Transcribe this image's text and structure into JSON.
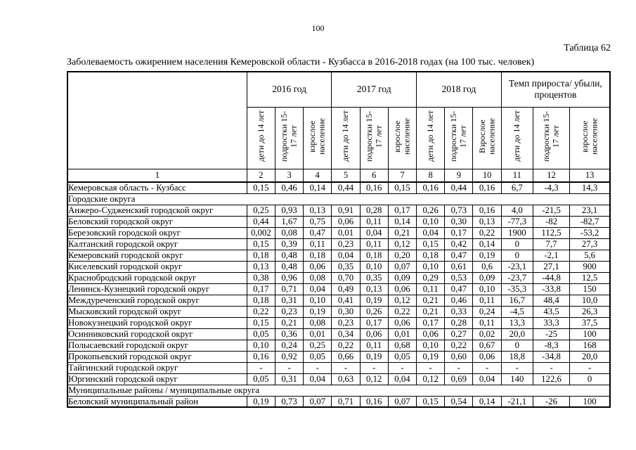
{
  "page": {
    "number": "100",
    "table_label": "Таблица 62",
    "title": "Заболеваемость ожирением населения Кемеровской области - Кузбасса в 2016-2018 годах (на 100 тыс. человек)"
  },
  "table": {
    "group_headers": [
      "2016 год",
      "2017 год",
      "2018 год",
      "Темп прироста/ убыли, процентов"
    ],
    "sub_headers": [
      "дети до 14 лет",
      "подростки 15-17 лет",
      "взрослое население",
      "дети до 14 лет",
      "подростки 15-17 лет",
      "взрослое население",
      "дети до 14 лет",
      "подростки 15-17 лет",
      "Взрослое население",
      "дети до 14 лет",
      "подростки 15-17 лет",
      "взрослое население"
    ],
    "column_numbers": [
      "1",
      "2",
      "3",
      "4",
      "5",
      "6",
      "7",
      "8",
      "9",
      "10",
      "11",
      "12",
      "13"
    ],
    "rows": [
      {
        "section": false,
        "label": "Кемеровская область - Кузбасс",
        "values": [
          "0,15",
          "0,46",
          "0,14",
          "0,44",
          "0,16",
          "0,15",
          "0,16",
          "0,44",
          "0,16",
          "6,7",
          "-4,3",
          "14,3"
        ]
      },
      {
        "section": true,
        "label": "Городские округа",
        "values": []
      },
      {
        "section": false,
        "label": "Анжеро-Судженский городской округ",
        "values": [
          "0,25",
          "0,93",
          "0,13",
          "0,91",
          "0,28",
          "0,17",
          "0,26",
          "0,73",
          "0,16",
          "4,0",
          "-21,5",
          "23,1"
        ]
      },
      {
        "section": false,
        "label": "Беловский городской округ",
        "values": [
          "0,44",
          "1,67",
          "0,75",
          "0,06",
          "0,11",
          "0,14",
          "0,10",
          "0,30",
          "0,13",
          "-77,3",
          "-82",
          "-82,7"
        ]
      },
      {
        "section": false,
        "label": "Березовский городской округ",
        "values": [
          "0,002",
          "0,08",
          "0,47",
          "0,01",
          "0,04",
          "0,21",
          "0,04",
          "0,17",
          "0,22",
          "1900",
          "112,5",
          "-53,2"
        ]
      },
      {
        "section": false,
        "label": "Калтанский городской округ",
        "values": [
          "0,15",
          "0,39",
          "0,11",
          "0,23",
          "0,11",
          "0,12",
          "0,15",
          "0,42",
          "0,14",
          "0",
          "7,7",
          "27,3"
        ]
      },
      {
        "section": false,
        "label": "Кемеровский городской округ",
        "values": [
          "0,18",
          "0,48",
          "0,18",
          "0,04",
          "0,18",
          "0,20",
          "0,18",
          "0,47",
          "0,19",
          "0",
          "-2,1",
          "5,6"
        ]
      },
      {
        "section": false,
        "label": "Киселевский городской округ",
        "values": [
          "0,13",
          "0,48",
          "0,06",
          "0,35",
          "0,10",
          "0,07",
          "0,10",
          "0,61",
          "0,6",
          "-23,1",
          "27,1",
          "900"
        ]
      },
      {
        "section": false,
        "label": "Краснобродский городской округ",
        "values": [
          "0,38",
          "0,96",
          "0,08",
          "0,70",
          "0,35",
          "0,09",
          "0,29",
          "0,53",
          "0,09",
          "-23,7",
          "-44,8",
          "12,5"
        ]
      },
      {
        "section": false,
        "label": "Ленинск-Кузнецкий городской округ",
        "values": [
          "0,17",
          "0,71",
          "0,04",
          "0,49",
          "0,13",
          "0,06",
          "0,11",
          "0,47",
          "0,10",
          "-35,3",
          "-33,8",
          "150"
        ]
      },
      {
        "section": false,
        "label": "Междуреченский городской округ",
        "values": [
          "0,18",
          "0,31",
          "0,10",
          "0,41",
          "0,19",
          "0,12",
          "0,21",
          "0,46",
          "0,11",
          "16,7",
          "48,4",
          "10,0"
        ]
      },
      {
        "section": false,
        "label": "Мысковский городской округ",
        "values": [
          "0,22",
          "0,23",
          "0,19",
          "0,30",
          "0,26",
          "0,22",
          "0,21",
          "0,33",
          "0,24",
          "-4,5",
          "43,5",
          "26,3"
        ]
      },
      {
        "section": false,
        "label": "Новокузнецкий городской округ",
        "values": [
          "0,15",
          "0,21",
          "0,08",
          "0,23",
          "0,17",
          "0,06",
          "0,17",
          "0,28",
          "0,11",
          "13,3",
          "33,3",
          "37,5"
        ]
      },
      {
        "section": false,
        "label": "Осинниковский городской округ",
        "values": [
          "0,05",
          "0,36",
          "0,01",
          "0,34",
          "0,06",
          "0,01",
          "0,06",
          "0,27",
          "0,02",
          "20,0",
          "-25",
          "100"
        ]
      },
      {
        "section": false,
        "label": "Полысаевский городской округ",
        "values": [
          "0,10",
          "0,24",
          "0,25",
          "0,22",
          "0,11",
          "0,68",
          "0,10",
          "0,22",
          "0,67",
          "0",
          "-8,3",
          "168"
        ]
      },
      {
        "section": false,
        "label": "Прокопьевский городской округ",
        "values": [
          "0,16",
          "0,92",
          "0,05",
          "0,66",
          "0,19",
          "0,05",
          "0,19",
          "0,60",
          "0,06",
          "18,8",
          "-34,8",
          "20,0"
        ]
      },
      {
        "section": false,
        "label": "Тайгинский городской округ",
        "values": [
          "-",
          "-",
          "-",
          "-",
          "-",
          "-",
          "-",
          "-",
          "-",
          "-",
          "-",
          "-"
        ]
      },
      {
        "section": false,
        "label": "Юргинский городской округ",
        "values": [
          "0,05",
          "0,31",
          "0,04",
          "0,63",
          "0,12",
          "0,04",
          "0,12",
          "0,69",
          "0,04",
          "140",
          "122,6",
          "0"
        ]
      },
      {
        "section": true,
        "label": "Муниципальные районы / муниципальные округа",
        "values": []
      },
      {
        "section": false,
        "label": "Беловский муниципальный район",
        "values": [
          "0,19",
          "0,73",
          "0,07",
          "0,71",
          "0,16",
          "0,07",
          "0,15",
          "0,54",
          "0,14",
          "-21,1",
          "-26",
          "100"
        ]
      }
    ]
  }
}
